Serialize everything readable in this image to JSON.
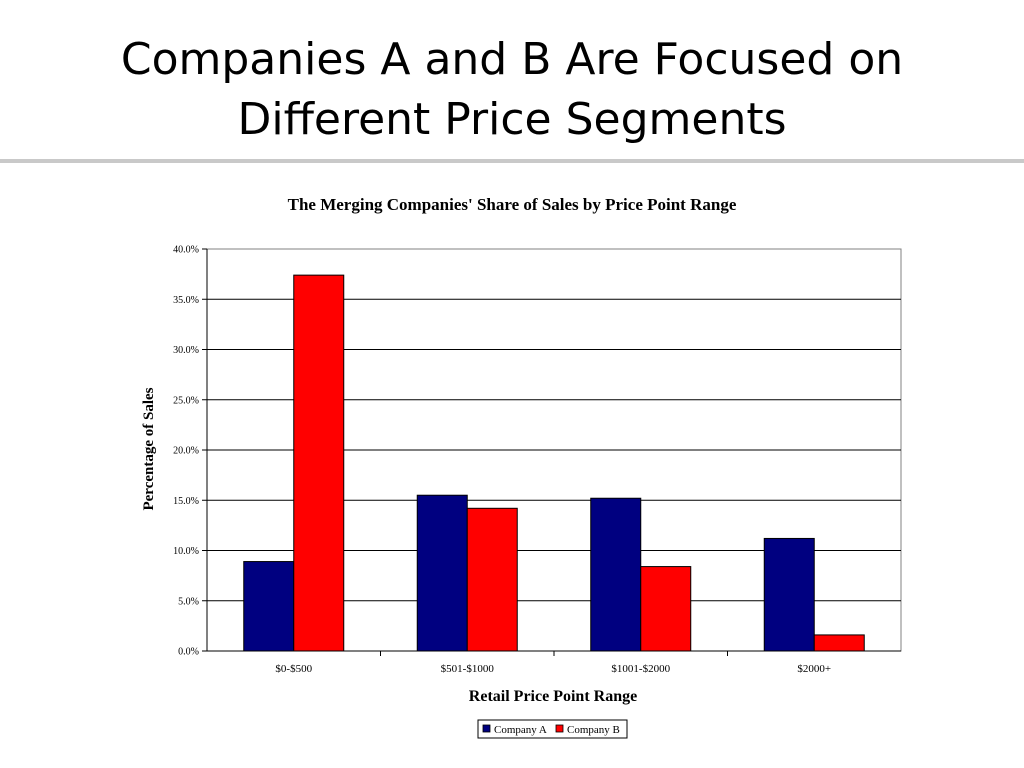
{
  "slide": {
    "title_line1": "Companies A and B Are Focused on",
    "title_line2": "Different Price Segments"
  },
  "chart_data": {
    "type": "bar",
    "title": "The Merging Companies' Share of Sales by Price Point Range",
    "xlabel": "Retail Price Point Range",
    "ylabel": "Percentage of Sales",
    "categories": [
      "$0-$500",
      "$501-$1000",
      "$1001-$2000",
      "$2000+"
    ],
    "series": [
      {
        "name": "Company A",
        "color": "#000080",
        "values": [
          8.9,
          15.5,
          15.2,
          11.2
        ]
      },
      {
        "name": "Company B",
        "color": "#ff0000",
        "values": [
          37.4,
          14.2,
          8.4,
          1.6
        ]
      }
    ],
    "ylim": [
      0,
      40
    ],
    "yticks": [
      "0.0%",
      "5.0%",
      "10.0%",
      "15.0%",
      "20.0%",
      "25.0%",
      "30.0%",
      "35.0%",
      "40.0%"
    ],
    "grid": true,
    "legend_position": "bottom"
  }
}
